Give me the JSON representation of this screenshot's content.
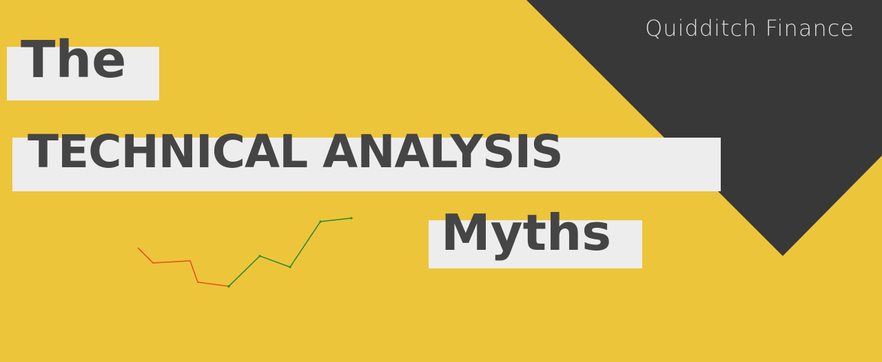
{
  "brand": {
    "name": "Quidditch Finance"
  },
  "title": {
    "line1": "The",
    "line2": "TECHNICAL ANALYSIS",
    "line3": "Myths"
  },
  "colors": {
    "background": "#EDC53B",
    "dark_panel": "#383838",
    "highlight_strip": "#EDEDED",
    "title_text": "#454545",
    "brand_text": "#DCDCDC",
    "line_down": "#E8501E",
    "line_up": "#2E8B2E"
  },
  "decorative_line": {
    "down_segment_color": "red",
    "up_segment_color": "green",
    "trend": "down-then-up"
  }
}
